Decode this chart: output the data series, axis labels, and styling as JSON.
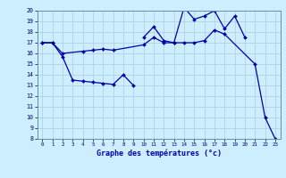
{
  "xlabel": "Graphe des températures (°c)",
  "bg_color": "#cceeff",
  "grid_color": "#aaccdd",
  "line_color": "#0000aa",
  "tick_color": "#000066",
  "ylim": [
    8,
    20
  ],
  "yticks": [
    8,
    9,
    10,
    11,
    12,
    13,
    14,
    15,
    16,
    17,
    18,
    19,
    20
  ],
  "xticks": [
    0,
    1,
    2,
    3,
    4,
    5,
    6,
    7,
    8,
    9,
    10,
    11,
    12,
    13,
    14,
    15,
    16,
    17,
    18,
    19,
    20,
    21,
    22,
    23
  ],
  "line1_x": [
    0,
    1,
    2,
    3,
    4,
    5,
    6,
    7,
    8,
    9
  ],
  "line1_y": [
    17.0,
    17.0,
    15.7,
    13.5,
    13.4,
    13.3,
    13.2,
    13.1,
    14.0,
    13.0
  ],
  "line2_x": [
    0,
    1,
    2,
    4,
    5,
    6,
    7,
    10,
    11,
    12,
    13,
    14,
    15,
    16,
    17,
    18,
    21,
    22,
    23
  ],
  "line2_y": [
    17.0,
    17.0,
    16.0,
    16.2,
    16.3,
    16.4,
    16.3,
    16.8,
    17.5,
    17.0,
    17.0,
    17.0,
    17.0,
    17.2,
    18.2,
    17.8,
    15.0,
    10.0,
    8.0
  ],
  "line3_x": [
    10,
    11,
    12,
    13,
    14,
    15,
    16,
    17,
    18,
    19,
    20
  ],
  "line3_y": [
    17.5,
    18.5,
    17.2,
    17.0,
    20.3,
    19.2,
    19.5,
    20.0,
    18.3,
    19.5,
    17.5
  ]
}
